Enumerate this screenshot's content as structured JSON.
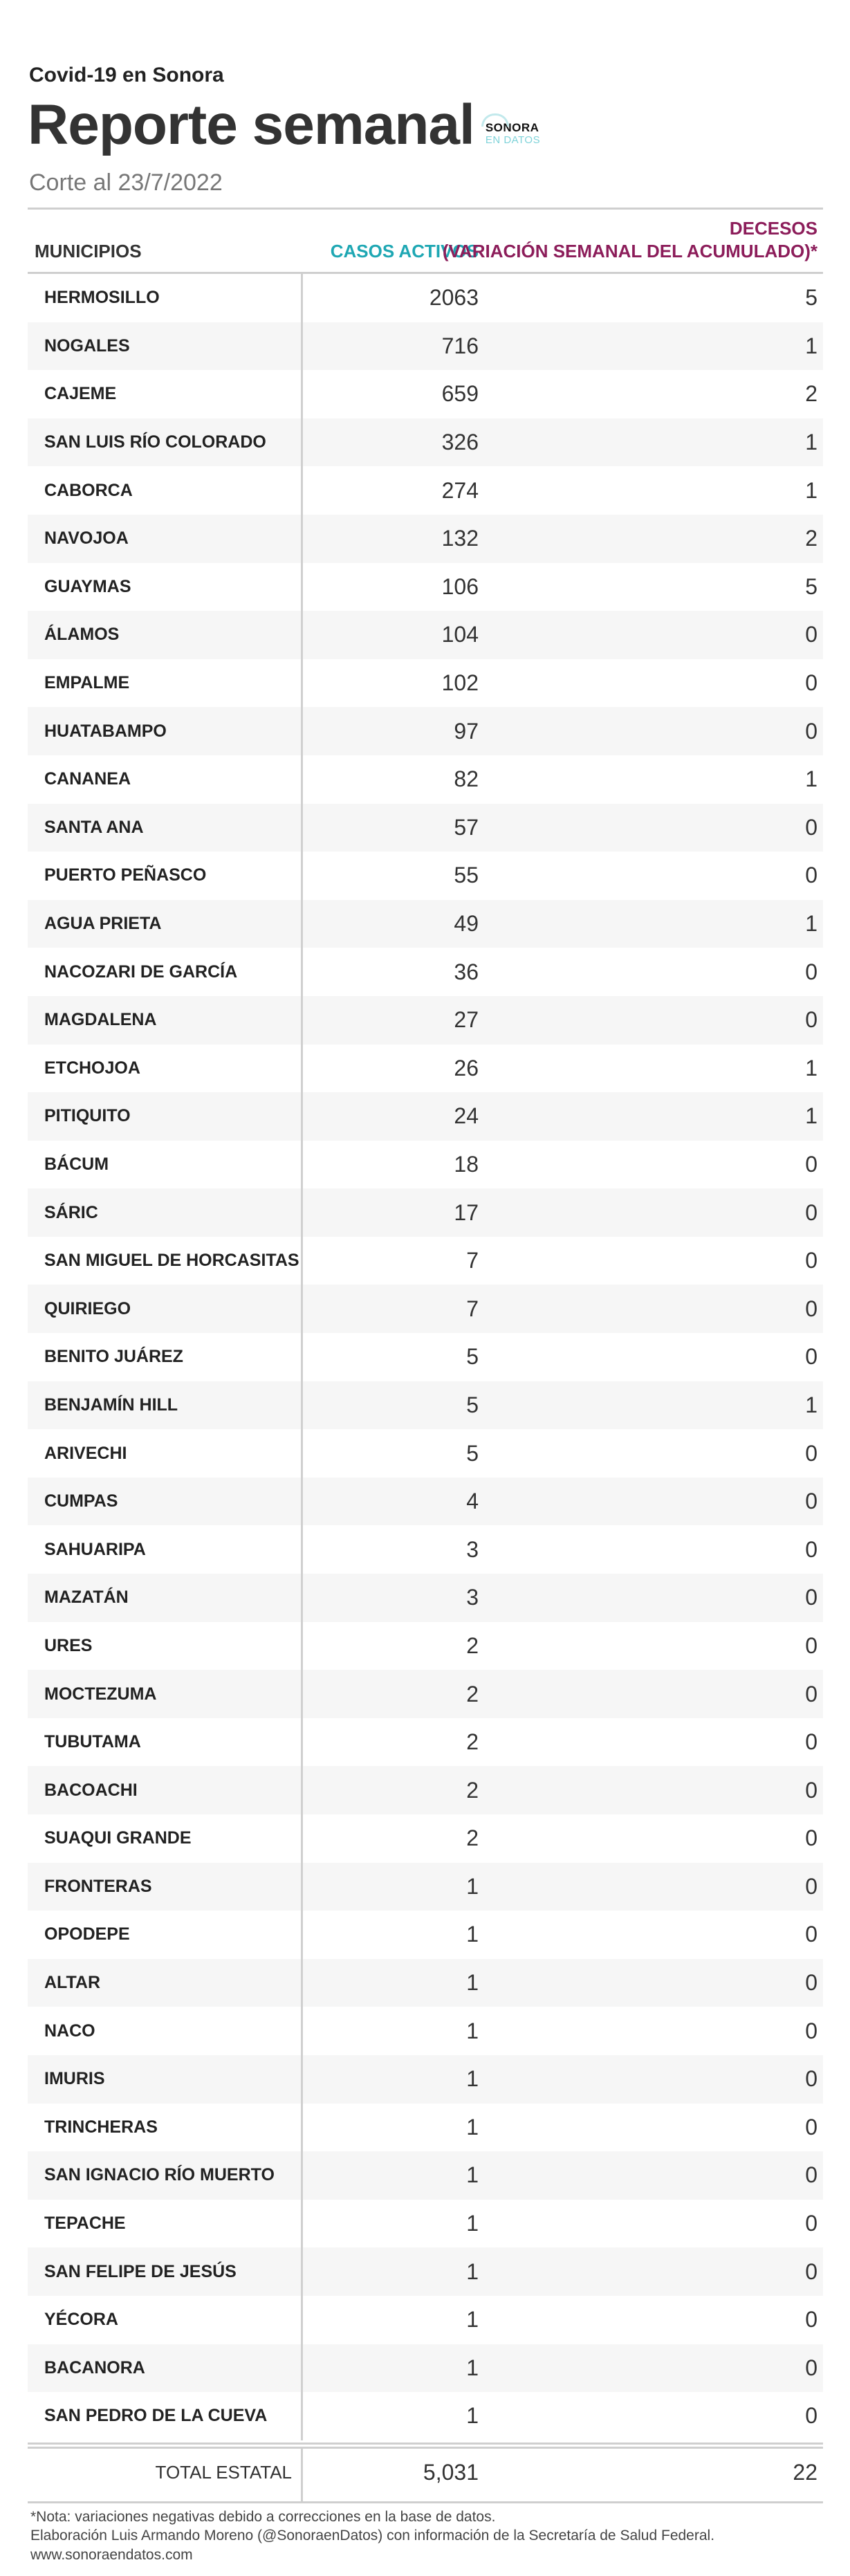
{
  "kicker": "Covid-19 en Sonora",
  "title": "Reporte semanal",
  "logo": {
    "line1": "SONORA",
    "line2": "EN DATOS"
  },
  "subtitle": "Corte al 23/7/2022",
  "columns": {
    "municipio": "MUNICIPIOS",
    "casos": "CASOS ACTIVOS",
    "decesos_line1": "DECESOS",
    "decesos_line2": "(VARIACIÓN SEMANAL DEL ACUMULADO)*"
  },
  "rows": [
    {
      "municipio": "HERMOSILLO",
      "casos": "2063",
      "decesos": "5"
    },
    {
      "municipio": "NOGALES",
      "casos": "716",
      "decesos": "1"
    },
    {
      "municipio": "CAJEME",
      "casos": "659",
      "decesos": "2"
    },
    {
      "municipio": "SAN LUIS RÍO COLORADO",
      "casos": "326",
      "decesos": "1"
    },
    {
      "municipio": "CABORCA",
      "casos": "274",
      "decesos": "1"
    },
    {
      "municipio": "NAVOJOA",
      "casos": "132",
      "decesos": "2"
    },
    {
      "municipio": "GUAYMAS",
      "casos": "106",
      "decesos": "5"
    },
    {
      "municipio": "ÁLAMOS",
      "casos": "104",
      "decesos": "0"
    },
    {
      "municipio": "EMPALME",
      "casos": "102",
      "decesos": "0"
    },
    {
      "municipio": "HUATABAMPO",
      "casos": "97",
      "decesos": "0"
    },
    {
      "municipio": "CANANEA",
      "casos": "82",
      "decesos": "1"
    },
    {
      "municipio": "SANTA ANA",
      "casos": "57",
      "decesos": "0"
    },
    {
      "municipio": "PUERTO PEÑASCO",
      "casos": "55",
      "decesos": "0"
    },
    {
      "municipio": "AGUA PRIETA",
      "casos": "49",
      "decesos": "1"
    },
    {
      "municipio": "NACOZARI DE GARCÍA",
      "casos": "36",
      "decesos": "0"
    },
    {
      "municipio": "MAGDALENA",
      "casos": "27",
      "decesos": "0"
    },
    {
      "municipio": "ETCHOJOA",
      "casos": "26",
      "decesos": "1"
    },
    {
      "municipio": "PITIQUITO",
      "casos": "24",
      "decesos": "1"
    },
    {
      "municipio": "BÁCUM",
      "casos": "18",
      "decesos": "0"
    },
    {
      "municipio": "SÁRIC",
      "casos": "17",
      "decesos": "0"
    },
    {
      "municipio": "SAN MIGUEL DE HORCASITAS",
      "casos": "7",
      "decesos": "0"
    },
    {
      "municipio": "QUIRIEGO",
      "casos": "7",
      "decesos": "0"
    },
    {
      "municipio": "BENITO JUÁREZ",
      "casos": "5",
      "decesos": "0"
    },
    {
      "municipio": "BENJAMÍN HILL",
      "casos": "5",
      "decesos": "1"
    },
    {
      "municipio": "ARIVECHI",
      "casos": "5",
      "decesos": "0"
    },
    {
      "municipio": "CUMPAS",
      "casos": "4",
      "decesos": "0"
    },
    {
      "municipio": "SAHUARIPA",
      "casos": "3",
      "decesos": "0"
    },
    {
      "municipio": "MAZATÁN",
      "casos": "3",
      "decesos": "0"
    },
    {
      "municipio": "URES",
      "casos": "2",
      "decesos": "0"
    },
    {
      "municipio": "MOCTEZUMA",
      "casos": "2",
      "decesos": "0"
    },
    {
      "municipio": "TUBUTAMA",
      "casos": "2",
      "decesos": "0"
    },
    {
      "municipio": "BACOACHI",
      "casos": "2",
      "decesos": "0"
    },
    {
      "municipio": "SUAQUI GRANDE",
      "casos": "2",
      "decesos": "0"
    },
    {
      "municipio": "FRONTERAS",
      "casos": "1",
      "decesos": "0"
    },
    {
      "municipio": "OPODEPE",
      "casos": "1",
      "decesos": "0"
    },
    {
      "municipio": "ALTAR",
      "casos": "1",
      "decesos": "0"
    },
    {
      "municipio": "NACO",
      "casos": "1",
      "decesos": "0"
    },
    {
      "municipio": "IMURIS",
      "casos": "1",
      "decesos": "0"
    },
    {
      "municipio": "TRINCHERAS",
      "casos": "1",
      "decesos": "0"
    },
    {
      "municipio": "SAN IGNACIO RÍO MUERTO",
      "casos": "1",
      "decesos": "0"
    },
    {
      "municipio": "TEPACHE",
      "casos": "1",
      "decesos": "0"
    },
    {
      "municipio": "SAN FELIPE DE JESÚS",
      "casos": "1",
      "decesos": "0"
    },
    {
      "municipio": "YÉCORA",
      "casos": "1",
      "decesos": "0"
    },
    {
      "municipio": "BACANORA",
      "casos": "1",
      "decesos": "0"
    },
    {
      "municipio": "SAN PEDRO DE LA CUEVA",
      "casos": "1",
      "decesos": "0"
    }
  ],
  "total": {
    "label": "TOTAL ESTATAL",
    "casos": "5,031",
    "decesos": "22"
  },
  "notes": [
    "*Nota: variaciones negativas debido a correcciones en la base de datos.",
    "Elaboración Luis Armando Moreno (@SonoraenDatos) con información de la Secretaría de Salud Federal.",
    "www.sonoraendatos.com"
  ],
  "colors": {
    "casos": "#1ea7b3",
    "decesos": "#8c1d5a",
    "logo_accent": "#7fd3d9"
  }
}
